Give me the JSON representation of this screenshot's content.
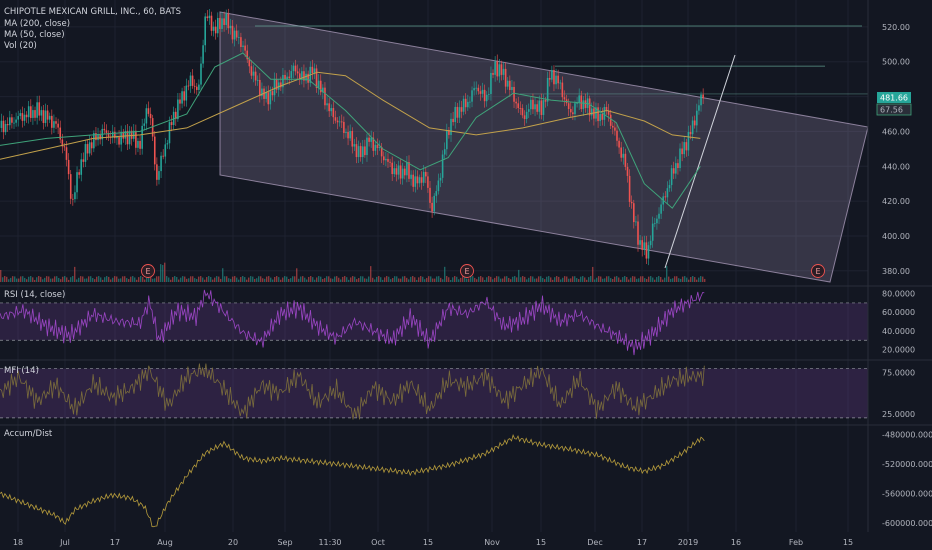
{
  "header": {
    "symbol_line": "CHIPOTLE MEXICAN GRILL, INC., 60, BATS",
    "ma200": "MA (200, close)",
    "ma50": "MA (50, close)",
    "vol": "Vol (20)"
  },
  "panes": {
    "rsi": "RSI (14, close)",
    "mfi": "MFI (14)",
    "ad": "Accum/Dist"
  },
  "price_badges": {
    "last": "481.66",
    "secondary": "67.56"
  },
  "earnings_marker": "E",
  "chart_data": {
    "type": "line",
    "x_ticks": [
      "18",
      "Jul",
      "17",
      "Aug",
      "20",
      "Sep",
      "11:30",
      "Oct",
      "15",
      "Nov",
      "15",
      "Dec",
      "17",
      "2019",
      "16",
      "Feb",
      "15"
    ],
    "price_axis": {
      "ticks": [
        "520.00",
        "500.00",
        "480.00",
        "460.00",
        "440.00",
        "420.00",
        "400.00",
        "380.00"
      ],
      "ylim": [
        373,
        532
      ]
    },
    "rsi_axis": {
      "ticks": [
        "80.0000",
        "60.0000",
        "40.0000",
        "20.0000"
      ],
      "ylim": [
        12,
        86
      ],
      "bands": [
        70,
        30
      ]
    },
    "mfi_axis": {
      "ticks": [
        "75.0000",
        "25.0000"
      ],
      "ylim": [
        15,
        88
      ],
      "bands": [
        80,
        20
      ]
    },
    "ad_axis": {
      "ticks": [
        "-480000.0000",
        "-520000.0000",
        "-560000.0000",
        "-600000.0000"
      ],
      "ylim": [
        -612000,
        -470000
      ]
    },
    "price": [
      {
        "t": 0,
        "v": 462
      },
      {
        "t": 4,
        "v": 468
      },
      {
        "t": 8,
        "v": 472
      },
      {
        "t": 12,
        "v": 464
      },
      {
        "t": 14,
        "v": 448
      },
      {
        "t": 15.5,
        "v": 418
      },
      {
        "t": 17,
        "v": 440
      },
      {
        "t": 19,
        "v": 452
      },
      {
        "t": 22,
        "v": 460
      },
      {
        "t": 25,
        "v": 456
      },
      {
        "t": 28,
        "v": 458
      },
      {
        "t": 30,
        "v": 452
      },
      {
        "t": 31.5,
        "v": 476
      },
      {
        "t": 32.5,
        "v": 462
      },
      {
        "t": 33.5,
        "v": 432
      },
      {
        "t": 35,
        "v": 448
      },
      {
        "t": 37,
        "v": 468
      },
      {
        "t": 39,
        "v": 480
      },
      {
        "t": 41,
        "v": 490
      },
      {
        "t": 42.5,
        "v": 482
      },
      {
        "t": 44,
        "v": 527
      },
      {
        "t": 46,
        "v": 518
      },
      {
        "t": 48,
        "v": 525
      },
      {
        "t": 50,
        "v": 516
      },
      {
        "t": 52,
        "v": 510
      },
      {
        "t": 53,
        "v": 500
      },
      {
        "t": 55,
        "v": 488
      },
      {
        "t": 57,
        "v": 478
      },
      {
        "t": 59,
        "v": 486
      },
      {
        "t": 61,
        "v": 490
      },
      {
        "t": 63,
        "v": 496
      },
      {
        "t": 65,
        "v": 490
      },
      {
        "t": 67,
        "v": 495
      },
      {
        "t": 69,
        "v": 482
      },
      {
        "t": 71,
        "v": 470
      },
      {
        "t": 73,
        "v": 464
      },
      {
        "t": 75,
        "v": 456
      },
      {
        "t": 77,
        "v": 446
      },
      {
        "t": 79,
        "v": 455
      },
      {
        "t": 81,
        "v": 450
      },
      {
        "t": 83,
        "v": 442
      },
      {
        "t": 85,
        "v": 436
      },
      {
        "t": 87,
        "v": 438
      },
      {
        "t": 89,
        "v": 430
      },
      {
        "t": 91,
        "v": 436
      },
      {
        "t": 92.5,
        "v": 415
      },
      {
        "t": 94,
        "v": 432
      },
      {
        "t": 96,
        "v": 462
      },
      {
        "t": 98,
        "v": 472
      },
      {
        "t": 100,
        "v": 476
      },
      {
        "t": 102,
        "v": 486
      },
      {
        "t": 104,
        "v": 478
      },
      {
        "t": 106,
        "v": 498
      },
      {
        "t": 108,
        "v": 492
      },
      {
        "t": 110,
        "v": 480
      },
      {
        "t": 112,
        "v": 468
      },
      {
        "t": 114,
        "v": 476
      },
      {
        "t": 116,
        "v": 472
      },
      {
        "t": 118,
        "v": 494
      },
      {
        "t": 120,
        "v": 486
      },
      {
        "t": 122,
        "v": 470
      },
      {
        "t": 124,
        "v": 478
      },
      {
        "t": 126,
        "v": 474
      },
      {
        "t": 128,
        "v": 468
      },
      {
        "t": 130,
        "v": 472
      },
      {
        "t": 132,
        "v": 456
      },
      {
        "t": 134,
        "v": 440
      },
      {
        "t": 135.5,
        "v": 412
      },
      {
        "t": 137,
        "v": 396
      },
      {
        "t": 138.5,
        "v": 390
      },
      {
        "t": 140,
        "v": 406
      },
      {
        "t": 142,
        "v": 420
      },
      {
        "t": 144,
        "v": 436
      },
      {
        "t": 146,
        "v": 448
      },
      {
        "t": 148,
        "v": 460
      },
      {
        "t": 150,
        "v": 478
      },
      {
        "t": 151,
        "v": 481.66
      }
    ],
    "ma50": [
      {
        "t": 0,
        "v": 452
      },
      {
        "t": 10,
        "v": 456
      },
      {
        "t": 20,
        "v": 458
      },
      {
        "t": 30,
        "v": 460
      },
      {
        "t": 40,
        "v": 470
      },
      {
        "t": 46,
        "v": 497
      },
      {
        "t": 52,
        "v": 505
      },
      {
        "t": 58,
        "v": 490
      },
      {
        "t": 66,
        "v": 490
      },
      {
        "t": 74,
        "v": 472
      },
      {
        "t": 82,
        "v": 450
      },
      {
        "t": 90,
        "v": 438
      },
      {
        "t": 96,
        "v": 445
      },
      {
        "t": 102,
        "v": 468
      },
      {
        "t": 110,
        "v": 482
      },
      {
        "t": 118,
        "v": 478
      },
      {
        "t": 126,
        "v": 476
      },
      {
        "t": 132,
        "v": 465
      },
      {
        "t": 138,
        "v": 430
      },
      {
        "t": 144,
        "v": 416
      },
      {
        "t": 150,
        "v": 440
      }
    ],
    "ma200": [
      {
        "t": 0,
        "v": 444
      },
      {
        "t": 10,
        "v": 450
      },
      {
        "t": 20,
        "v": 456
      },
      {
        "t": 30,
        "v": 458
      },
      {
        "t": 40,
        "v": 462
      },
      {
        "t": 50,
        "v": 474
      },
      {
        "t": 60,
        "v": 486
      },
      {
        "t": 68,
        "v": 494
      },
      {
        "t": 74,
        "v": 492
      },
      {
        "t": 82,
        "v": 478
      },
      {
        "t": 92,
        "v": 462
      },
      {
        "t": 102,
        "v": 458
      },
      {
        "t": 112,
        "v": 462
      },
      {
        "t": 122,
        "v": 468
      },
      {
        "t": 130,
        "v": 472
      },
      {
        "t": 138,
        "v": 466
      },
      {
        "t": 144,
        "v": 458
      },
      {
        "t": 150,
        "v": 456
      }
    ],
    "rsi": [
      {
        "t": 0,
        "v": 55
      },
      {
        "t": 5,
        "v": 62
      },
      {
        "t": 10,
        "v": 45
      },
      {
        "t": 15,
        "v": 35
      },
      {
        "t": 20,
        "v": 58
      },
      {
        "t": 25,
        "v": 50
      },
      {
        "t": 30,
        "v": 48
      },
      {
        "t": 32,
        "v": 72
      },
      {
        "t": 34,
        "v": 30
      },
      {
        "t": 38,
        "v": 62
      },
      {
        "t": 42,
        "v": 55
      },
      {
        "t": 44,
        "v": 82
      },
      {
        "t": 48,
        "v": 60
      },
      {
        "t": 52,
        "v": 38
      },
      {
        "t": 56,
        "v": 28
      },
      {
        "t": 60,
        "v": 58
      },
      {
        "t": 64,
        "v": 65
      },
      {
        "t": 68,
        "v": 45
      },
      {
        "t": 72,
        "v": 32
      },
      {
        "t": 76,
        "v": 50
      },
      {
        "t": 80,
        "v": 40
      },
      {
        "t": 84,
        "v": 30
      },
      {
        "t": 88,
        "v": 55
      },
      {
        "t": 92,
        "v": 28
      },
      {
        "t": 96,
        "v": 65
      },
      {
        "t": 100,
        "v": 58
      },
      {
        "t": 104,
        "v": 72
      },
      {
        "t": 108,
        "v": 45
      },
      {
        "t": 112,
        "v": 52
      },
      {
        "t": 116,
        "v": 68
      },
      {
        "t": 120,
        "v": 50
      },
      {
        "t": 124,
        "v": 58
      },
      {
        "t": 128,
        "v": 45
      },
      {
        "t": 132,
        "v": 35
      },
      {
        "t": 136,
        "v": 22
      },
      {
        "t": 140,
        "v": 38
      },
      {
        "t": 144,
        "v": 62
      },
      {
        "t": 148,
        "v": 72
      },
      {
        "t": 151,
        "v": 80
      }
    ],
    "mfi": [
      {
        "t": 0,
        "v": 50
      },
      {
        "t": 4,
        "v": 70
      },
      {
        "t": 8,
        "v": 40
      },
      {
        "t": 12,
        "v": 60
      },
      {
        "t": 16,
        "v": 30
      },
      {
        "t": 20,
        "v": 62
      },
      {
        "t": 24,
        "v": 45
      },
      {
        "t": 28,
        "v": 55
      },
      {
        "t": 32,
        "v": 78
      },
      {
        "t": 36,
        "v": 35
      },
      {
        "t": 40,
        "v": 70
      },
      {
        "t": 44,
        "v": 80
      },
      {
        "t": 48,
        "v": 55
      },
      {
        "t": 52,
        "v": 25
      },
      {
        "t": 56,
        "v": 60
      },
      {
        "t": 60,
        "v": 50
      },
      {
        "t": 64,
        "v": 72
      },
      {
        "t": 68,
        "v": 38
      },
      {
        "t": 72,
        "v": 55
      },
      {
        "t": 76,
        "v": 22
      },
      {
        "t": 80,
        "v": 58
      },
      {
        "t": 84,
        "v": 40
      },
      {
        "t": 88,
        "v": 62
      },
      {
        "t": 92,
        "v": 30
      },
      {
        "t": 96,
        "v": 66
      },
      {
        "t": 100,
        "v": 58
      },
      {
        "t": 104,
        "v": 72
      },
      {
        "t": 108,
        "v": 40
      },
      {
        "t": 112,
        "v": 60
      },
      {
        "t": 116,
        "v": 78
      },
      {
        "t": 120,
        "v": 35
      },
      {
        "t": 124,
        "v": 68
      },
      {
        "t": 128,
        "v": 30
      },
      {
        "t": 132,
        "v": 58
      },
      {
        "t": 136,
        "v": 32
      },
      {
        "t": 140,
        "v": 48
      },
      {
        "t": 144,
        "v": 66
      },
      {
        "t": 148,
        "v": 70
      },
      {
        "t": 151,
        "v": 72
      }
    ],
    "ad": [
      {
        "t": 0,
        "v": -560000
      },
      {
        "t": 4,
        "v": -570000
      },
      {
        "t": 8,
        "v": -580000
      },
      {
        "t": 12,
        "v": -590000
      },
      {
        "t": 14,
        "v": -600000
      },
      {
        "t": 16,
        "v": -582000
      },
      {
        "t": 20,
        "v": -570000
      },
      {
        "t": 24,
        "v": -562000
      },
      {
        "t": 28,
        "v": -566000
      },
      {
        "t": 31,
        "v": -578000
      },
      {
        "t": 33,
        "v": -608000
      },
      {
        "t": 36,
        "v": -572000
      },
      {
        "t": 40,
        "v": -536000
      },
      {
        "t": 44,
        "v": -505000
      },
      {
        "t": 48,
        "v": -492000
      },
      {
        "t": 52,
        "v": -512000
      },
      {
        "t": 56,
        "v": -516000
      },
      {
        "t": 60,
        "v": -512000
      },
      {
        "t": 66,
        "v": -516000
      },
      {
        "t": 72,
        "v": -520000
      },
      {
        "t": 80,
        "v": -526000
      },
      {
        "t": 88,
        "v": -532000
      },
      {
        "t": 96,
        "v": -522000
      },
      {
        "t": 104,
        "v": -506000
      },
      {
        "t": 110,
        "v": -484000
      },
      {
        "t": 116,
        "v": -494000
      },
      {
        "t": 122,
        "v": -500000
      },
      {
        "t": 128,
        "v": -508000
      },
      {
        "t": 134,
        "v": -524000
      },
      {
        "t": 138,
        "v": -530000
      },
      {
        "t": 142,
        "v": -522000
      },
      {
        "t": 146,
        "v": -506000
      },
      {
        "t": 150,
        "v": -486000
      }
    ]
  },
  "colors": {
    "bg": "#131722",
    "grid": "#1e2230",
    "up": "#26a69a",
    "down": "#ef5350",
    "ma50": "#3fa37a",
    "ma200": "#c2a14b",
    "rsi": "#9b46c4",
    "mfi": "#7a6c3c",
    "ad": "#b59b3c",
    "channel": "#b8a6c8",
    "band": "#6a3d8f"
  }
}
